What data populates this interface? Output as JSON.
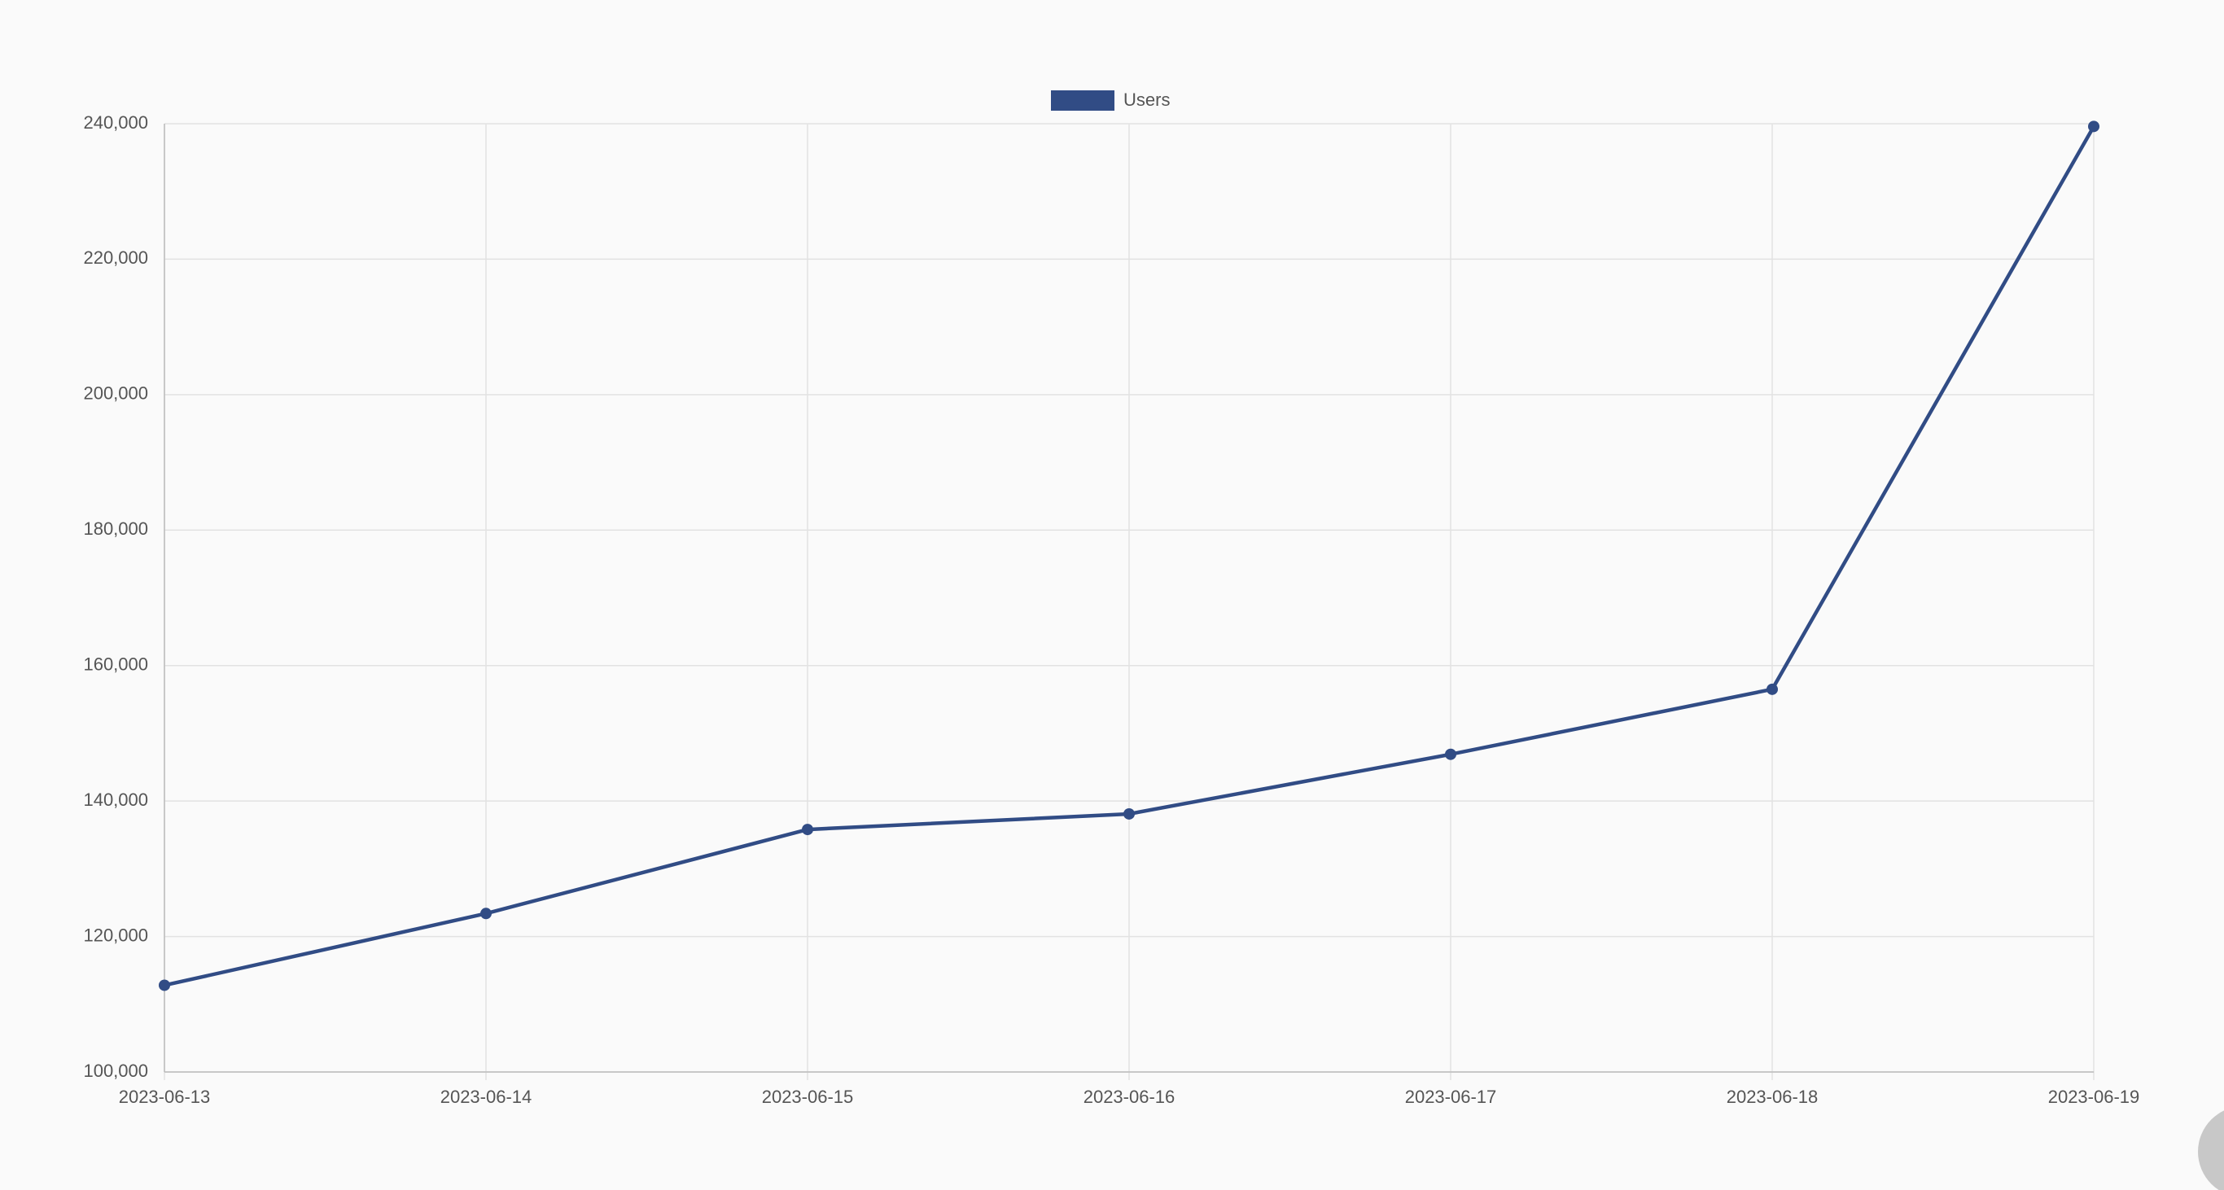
{
  "chart_data": {
    "type": "line",
    "categories": [
      "2023-06-13",
      "2023-06-14",
      "2023-06-15",
      "2023-06-16",
      "2023-06-17",
      "2023-06-18",
      "2023-06-19"
    ],
    "series": [
      {
        "name": "Users",
        "color": "#314c85",
        "values": [
          112800,
          123400,
          135800,
          138100,
          146900,
          156500,
          239600
        ]
      }
    ],
    "ylim": [
      100000,
      240000
    ],
    "yticks": [
      {
        "value": 100000,
        "label": "100,000"
      },
      {
        "value": 120000,
        "label": "120,000"
      },
      {
        "value": 140000,
        "label": "140,000"
      },
      {
        "value": 160000,
        "label": "160,000"
      },
      {
        "value": 180000,
        "label": "180,000"
      },
      {
        "value": 200000,
        "label": "200,000"
      },
      {
        "value": 220000,
        "label": "220,000"
      },
      {
        "value": 240000,
        "label": "240,000"
      }
    ],
    "grid": true,
    "legend": "top"
  }
}
